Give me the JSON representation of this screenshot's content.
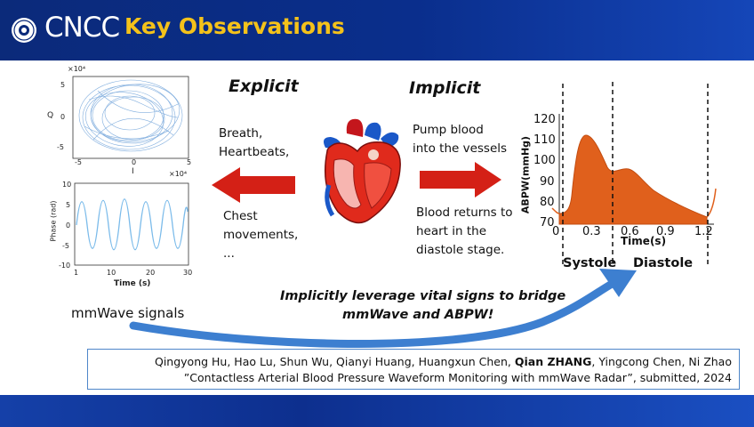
{
  "header": {
    "logo_text": "CNCC",
    "title": "Key Observations"
  },
  "left_panel": {
    "iq_plot": {
      "exponent": "×10⁴",
      "y_label": "Q",
      "x_label": "I",
      "x_ticks": [
        "-5",
        "0",
        "5"
      ],
      "y_ticks": [
        "5",
        "0",
        "-5"
      ],
      "x_exponent": "×10⁴"
    },
    "phase_plot": {
      "y_label": "Phase (rad)",
      "x_label": "Time (s)",
      "x_ticks": [
        "1",
        "10",
        "20",
        "30"
      ],
      "y_ticks": [
        "10",
        "5",
        "0",
        "-5",
        "-10"
      ]
    },
    "caption": "mmWave signals"
  },
  "explicit": {
    "heading": "Explicit",
    "items": [
      "Breath,",
      "Heartbeats,",
      "Chest",
      "movements,",
      "..."
    ]
  },
  "implicit": {
    "heading": "Implicit",
    "pump_lines": [
      "Pump blood",
      "into the vessels"
    ],
    "return_lines": [
      "Blood returns to",
      "heart in the",
      "diastole stage."
    ]
  },
  "abpw_chart": {
    "y_label": "ABPW(mmHg)",
    "x_label": "Time(s)",
    "y_ticks": [
      "120",
      "110",
      "100",
      "90",
      "80",
      "70"
    ],
    "x_ticks": [
      "0",
      "0.3",
      "0.6",
      "0.9",
      "1.2"
    ],
    "systole_label": "Systole",
    "diastole_label": "Diastole",
    "fill_color": "#e0601c"
  },
  "bridge": {
    "lines": [
      "Implicitly leverage vital signs to bridge",
      "mmWave and ABPW!"
    ]
  },
  "reference": {
    "authors_before": "Qingyong Hu, Hao Lu, Shun Wu, Qianyi Huang, Huangxun Chen, ",
    "author_bold": "Qian ZHANG",
    "authors_after": ", Yingcong Chen, Ni Zhao",
    "citation": "”Contactless Arterial Blood Pressure Waveform Monitoring with mmWave Radar”, submitted, 2024"
  },
  "colors": {
    "header_blue": "#0b2a7a",
    "title_yellow": "#f4c21a",
    "arrow_red": "#d42016",
    "curve_blue": "#3d7fd0",
    "signal_blue": "#6aaee8"
  }
}
